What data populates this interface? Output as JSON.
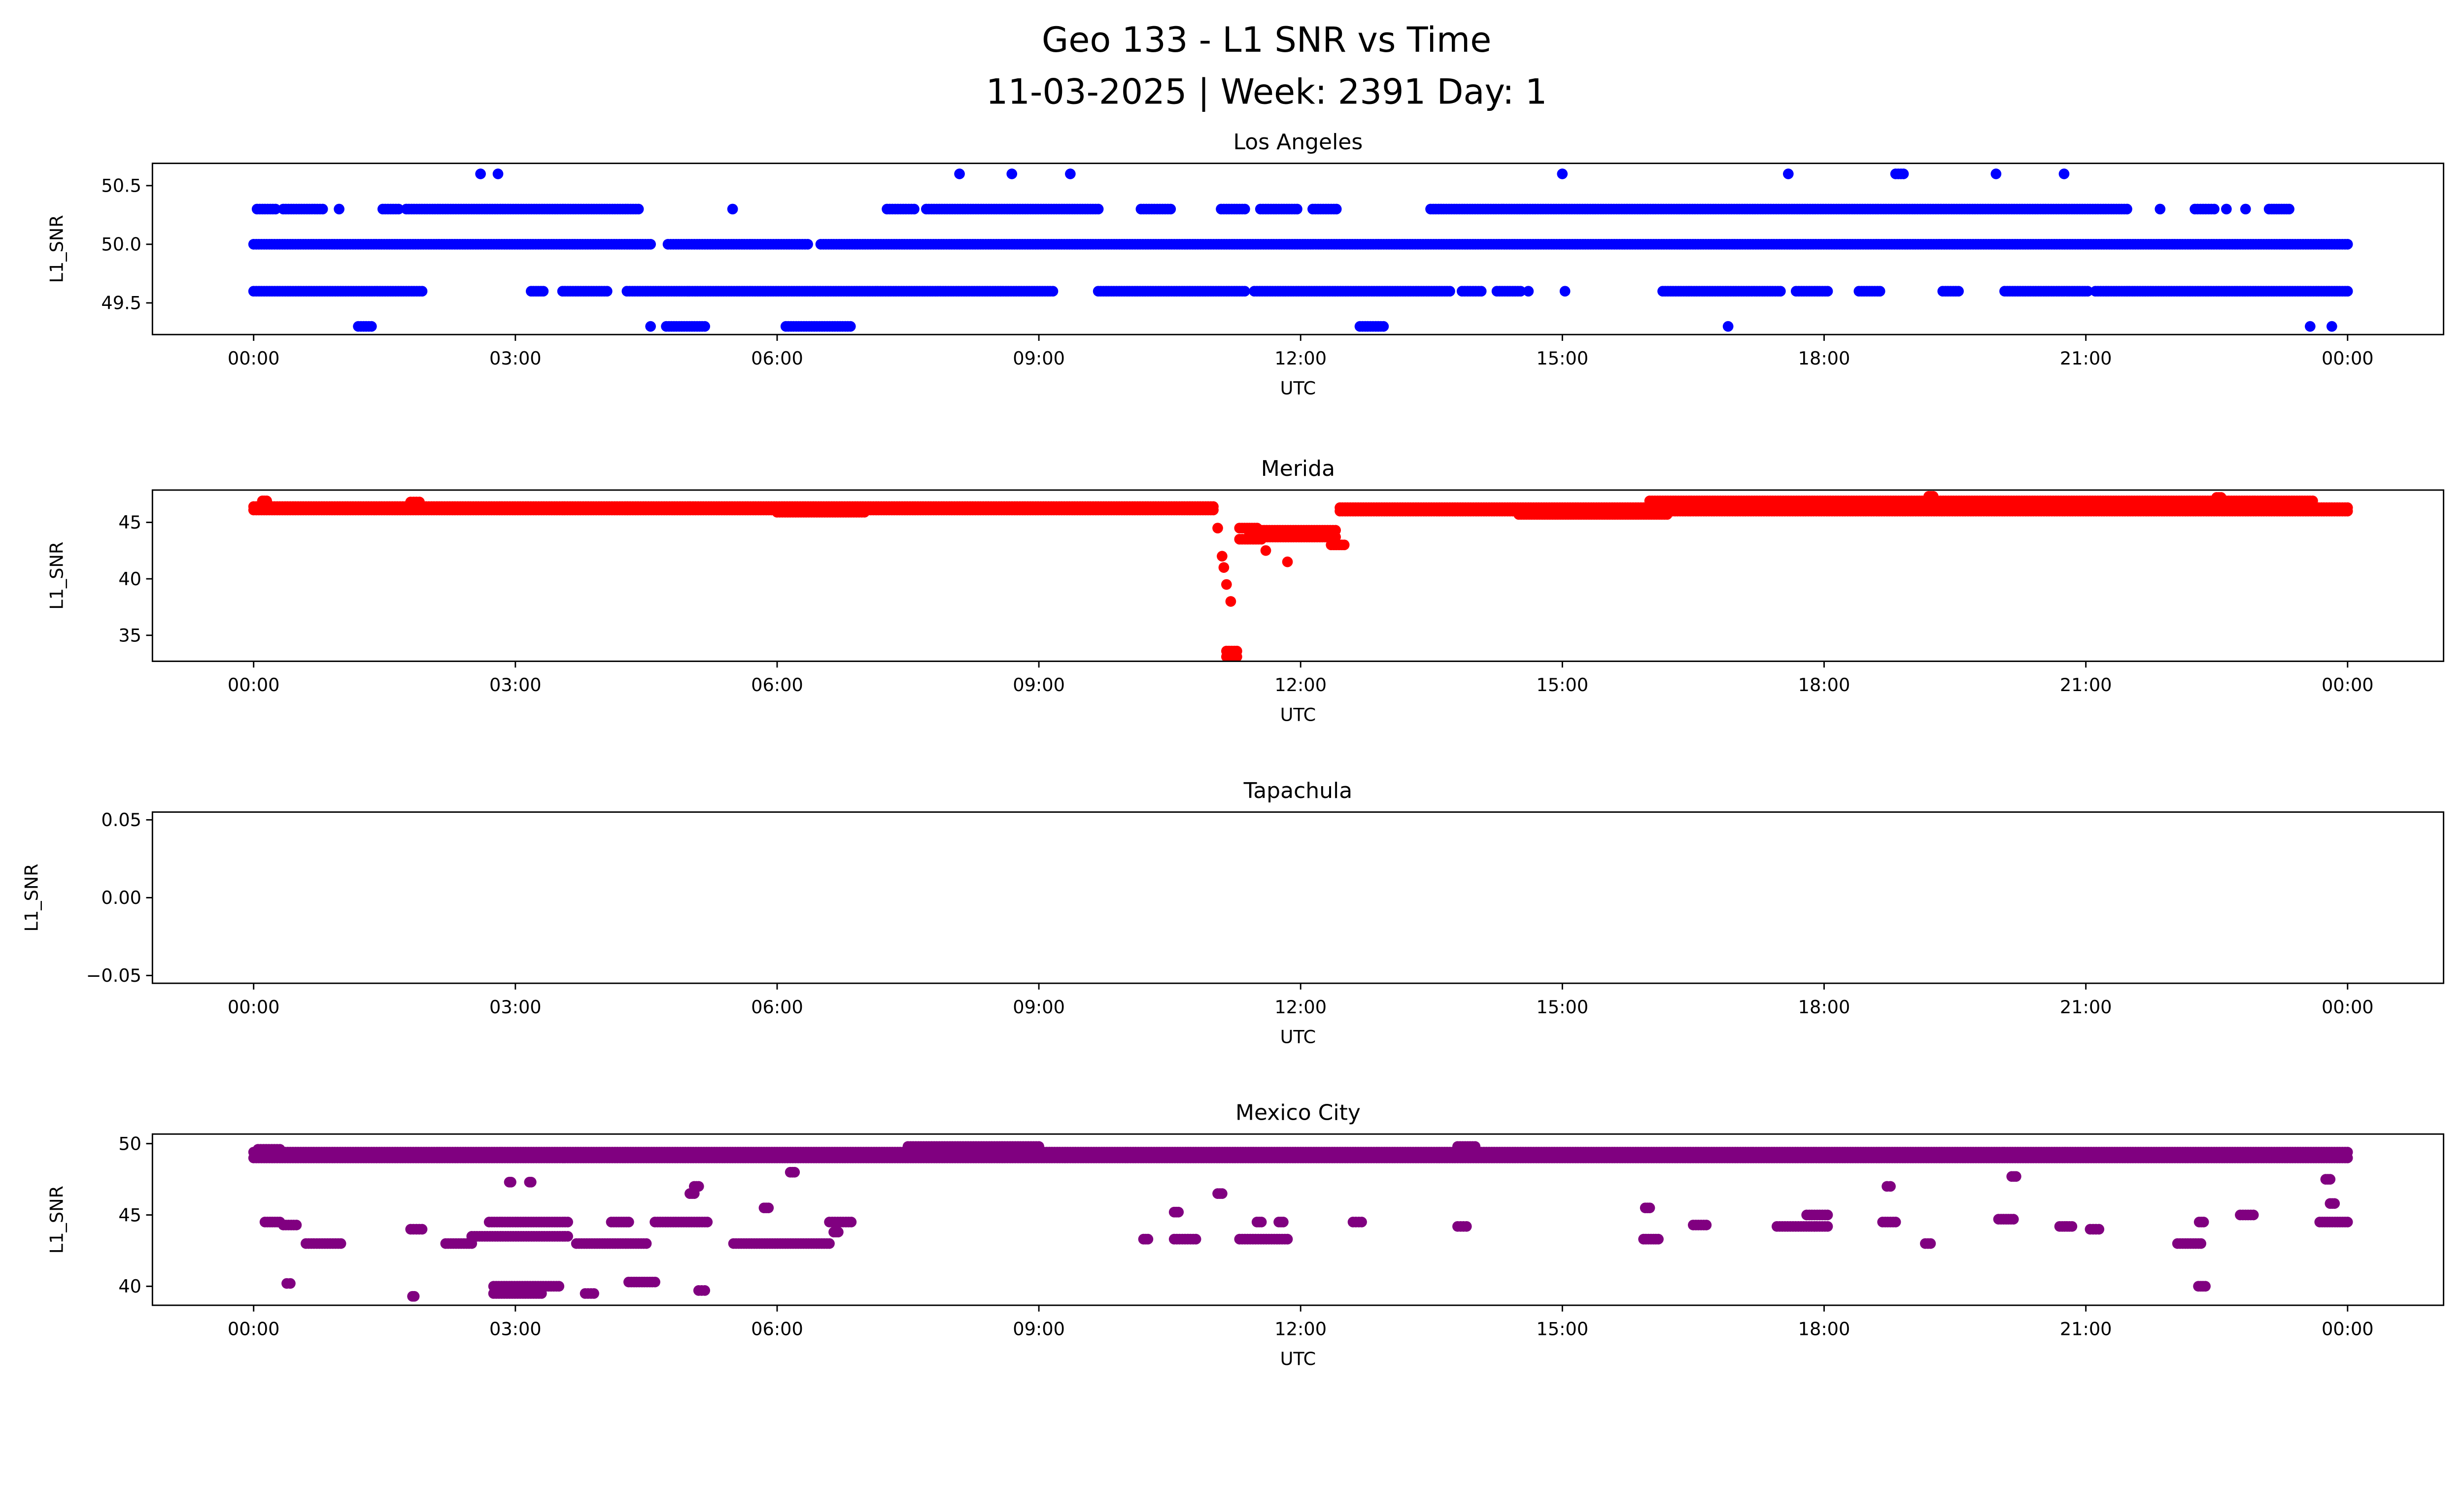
{
  "chart_data": {
    "type": "scatter",
    "title_line1": "Geo 133 - L1 SNR vs Time",
    "title_line2": "11-03-2025 | Week: 2391 Day: 1",
    "x_unit": "hours UTC",
    "xlim": [
      -1.16,
      25.1
    ],
    "xticks": [
      0,
      3,
      6,
      9,
      12,
      15,
      18,
      21,
      24
    ],
    "xtick_labels": [
      "00:00",
      "03:00",
      "06:00",
      "09:00",
      "12:00",
      "15:00",
      "18:00",
      "21:00",
      "00:00"
    ],
    "grid": false,
    "panels": [
      {
        "title": "Los Angeles",
        "xlabel": "UTC",
        "ylabel": "L1_SNR",
        "color": "#0000ff",
        "ylim": [
          49.23,
          50.69
        ],
        "yticks": [
          49.5,
          50.0,
          50.5
        ],
        "ytick_labels": [
          "49.5",
          "50.0",
          "50.5"
        ],
        "runs": [
          [
            0,
            4.55,
            50.0
          ],
          [
            4.75,
            6.35,
            50.0
          ],
          [
            6.5,
            24,
            50.0
          ],
          [
            0.04,
            0.25,
            50.3
          ],
          [
            0.34,
            0.79,
            50.3
          ],
          [
            0.98,
            0.98,
            50.3
          ],
          [
            1.48,
            1.66,
            50.3
          ],
          [
            1.75,
            4.41,
            50.3
          ],
          [
            5.49,
            5.49,
            50.3
          ],
          [
            7.26,
            7.57,
            50.3
          ],
          [
            7.71,
            9.68,
            50.3
          ],
          [
            10.17,
            10.51,
            50.3
          ],
          [
            11.09,
            11.36,
            50.3
          ],
          [
            11.54,
            11.96,
            50.3
          ],
          [
            12.14,
            12.41,
            50.3
          ],
          [
            13.49,
            21.47,
            50.3
          ],
          [
            21.85,
            21.85,
            50.3
          ],
          [
            22.25,
            22.47,
            50.3
          ],
          [
            22.61,
            22.61,
            50.3
          ],
          [
            22.83,
            22.83,
            50.3
          ],
          [
            23.1,
            23.33,
            50.3
          ],
          [
            0,
            1.93,
            49.6
          ],
          [
            3.18,
            3.32,
            49.6
          ],
          [
            3.54,
            4.05,
            49.6
          ],
          [
            4.28,
            9.16,
            49.6
          ],
          [
            9.68,
            11.36,
            49.6
          ],
          [
            11.47,
            13.71,
            49.6
          ],
          [
            13.85,
            14.07,
            49.6
          ],
          [
            14.25,
            14.52,
            49.6
          ],
          [
            14.61,
            14.61,
            49.6
          ],
          [
            15.03,
            15.03,
            49.6
          ],
          [
            16.15,
            17.5,
            49.6
          ],
          [
            17.68,
            18.04,
            49.6
          ],
          [
            18.4,
            18.64,
            49.6
          ],
          [
            19.36,
            19.54,
            49.6
          ],
          [
            20.07,
            21.02,
            49.6
          ],
          [
            21.11,
            24,
            49.6
          ],
          [
            1.2,
            1.35,
            49.3
          ],
          [
            4.55,
            4.55,
            49.3
          ],
          [
            4.73,
            5.17,
            49.3
          ],
          [
            6.1,
            6.84,
            49.3
          ],
          [
            12.68,
            12.95,
            49.3
          ],
          [
            16.9,
            16.9,
            49.3
          ],
          [
            23.57,
            23.57,
            49.3
          ],
          [
            23.82,
            23.82,
            49.3
          ],
          [
            2.6,
            2.6,
            50.6
          ],
          [
            2.8,
            2.8,
            50.6
          ],
          [
            8.09,
            8.09,
            50.6
          ],
          [
            8.69,
            8.69,
            50.6
          ],
          [
            9.36,
            9.36,
            50.6
          ],
          [
            15.0,
            15.0,
            50.6
          ],
          [
            17.59,
            17.59,
            50.6
          ],
          [
            18.82,
            18.91,
            50.6
          ],
          [
            19.97,
            19.97,
            50.6
          ],
          [
            20.75,
            20.75,
            50.6
          ]
        ]
      },
      {
        "title": "Merida",
        "xlabel": "UTC",
        "ylabel": "L1_SNR",
        "color": "#ff0000",
        "ylim": [
          32.7,
          47.86
        ],
        "yticks": [
          35,
          40,
          45
        ],
        "ytick_labels": [
          "35",
          "40",
          "45"
        ],
        "runs": [
          [
            0,
            11.0,
            46.4
          ],
          [
            0,
            11.0,
            46.1
          ],
          [
            6.0,
            7.0,
            45.9
          ],
          [
            0.1,
            0.15,
            46.9
          ],
          [
            1.8,
            1.9,
            46.8
          ],
          [
            11.05,
            11.05,
            44.5
          ],
          [
            11.1,
            11.1,
            42.0
          ],
          [
            11.12,
            11.12,
            41.0
          ],
          [
            11.15,
            11.15,
            39.5
          ],
          [
            11.2,
            11.2,
            38.0
          ],
          [
            11.15,
            11.27,
            33.6
          ],
          [
            11.15,
            11.27,
            33.1
          ],
          [
            11.3,
            11.55,
            43.5
          ],
          [
            11.3,
            11.5,
            44.5
          ],
          [
            11.4,
            12.4,
            44.3
          ],
          [
            11.5,
            12.4,
            43.7
          ],
          [
            11.6,
            11.6,
            42.5
          ],
          [
            11.85,
            11.85,
            41.5
          ],
          [
            12.35,
            12.5,
            43.0
          ],
          [
            12.45,
            24,
            46.3
          ],
          [
            12.45,
            24,
            46.0
          ],
          [
            14.5,
            16.2,
            45.7
          ],
          [
            16.0,
            23.6,
            46.9
          ],
          [
            17.0,
            22.0,
            46.6
          ],
          [
            19.2,
            19.25,
            47.3
          ],
          [
            22.5,
            22.55,
            47.2
          ]
        ]
      },
      {
        "title": "Tapachula",
        "xlabel": "UTC",
        "ylabel": "L1_SNR",
        "color": "#000000",
        "ylim": [
          -0.055,
          0.055
        ],
        "yticks": [
          -0.05,
          0.0,
          0.05
        ],
        "ytick_labels": [
          "−0.05",
          "0.00",
          "0.05"
        ],
        "runs": []
      },
      {
        "title": "Mexico City",
        "xlabel": "UTC",
        "ylabel": "L1_SNR",
        "color": "#800080",
        "ylim": [
          38.67,
          50.67
        ],
        "yticks": [
          40,
          45,
          50
        ],
        "ytick_labels": [
          "40",
          "45",
          "50"
        ],
        "runs": [
          [
            0,
            24,
            49.4
          ],
          [
            0,
            24,
            49.0
          ],
          [
            7.5,
            9.0,
            49.8
          ],
          [
            13.8,
            14.0,
            49.8
          ],
          [
            0.05,
            0.3,
            49.6
          ],
          [
            0.13,
            0.3,
            44.5
          ],
          [
            0.34,
            0.49,
            44.3
          ],
          [
            0.38,
            0.42,
            40.2
          ],
          [
            0.6,
            1.0,
            43.0
          ],
          [
            1.8,
            1.93,
            44.0
          ],
          [
            1.82,
            1.84,
            39.3
          ],
          [
            2.2,
            2.5,
            43.0
          ],
          [
            2.5,
            3.6,
            43.5
          ],
          [
            2.7,
            3.6,
            44.5
          ],
          [
            2.75,
            3.5,
            40.0
          ],
          [
            2.75,
            3.3,
            39.5
          ],
          [
            2.93,
            2.95,
            47.3
          ],
          [
            3.16,
            3.18,
            47.3
          ],
          [
            3.7,
            4.5,
            43.0
          ],
          [
            3.8,
            3.9,
            39.5
          ],
          [
            4.1,
            4.3,
            44.5
          ],
          [
            4.3,
            4.6,
            40.3
          ],
          [
            4.6,
            5.2,
            44.5
          ],
          [
            5.0,
            5.05,
            46.5
          ],
          [
            5.05,
            5.1,
            47.0
          ],
          [
            5.1,
            5.17,
            39.7
          ],
          [
            5.5,
            6.6,
            43.0
          ],
          [
            5.85,
            5.9,
            45.5
          ],
          [
            6.15,
            6.2,
            48.0
          ],
          [
            6.6,
            6.85,
            44.5
          ],
          [
            6.65,
            6.7,
            43.8
          ],
          [
            10.2,
            10.25,
            43.3
          ],
          [
            10.55,
            10.6,
            45.2
          ],
          [
            10.55,
            10.8,
            43.3
          ],
          [
            11.05,
            11.1,
            46.5
          ],
          [
            11.3,
            11.85,
            43.3
          ],
          [
            11.5,
            11.55,
            44.5
          ],
          [
            11.75,
            11.8,
            44.5
          ],
          [
            12.6,
            12.7,
            44.5
          ],
          [
            13.8,
            13.9,
            44.2
          ],
          [
            15.93,
            16.1,
            43.3
          ],
          [
            15.95,
            16.0,
            45.5
          ],
          [
            16.5,
            16.65,
            44.3
          ],
          [
            17.46,
            18.04,
            44.2
          ],
          [
            17.8,
            18.04,
            45.0
          ],
          [
            18.72,
            18.76,
            47.0
          ],
          [
            18.67,
            18.82,
            44.5
          ],
          [
            19.16,
            19.22,
            43.0
          ],
          [
            20.0,
            20.17,
            44.7
          ],
          [
            20.15,
            20.2,
            47.7
          ],
          [
            20.7,
            20.84,
            44.2
          ],
          [
            21.05,
            21.15,
            44.0
          ],
          [
            22.05,
            22.32,
            43.0
          ],
          [
            22.29,
            22.37,
            40.0
          ],
          [
            22.3,
            22.35,
            44.5
          ],
          [
            22.77,
            22.92,
            45.0
          ],
          [
            23.68,
            24.0,
            44.5
          ],
          [
            23.75,
            23.8,
            47.5
          ],
          [
            23.8,
            23.85,
            45.8
          ]
        ]
      }
    ]
  }
}
